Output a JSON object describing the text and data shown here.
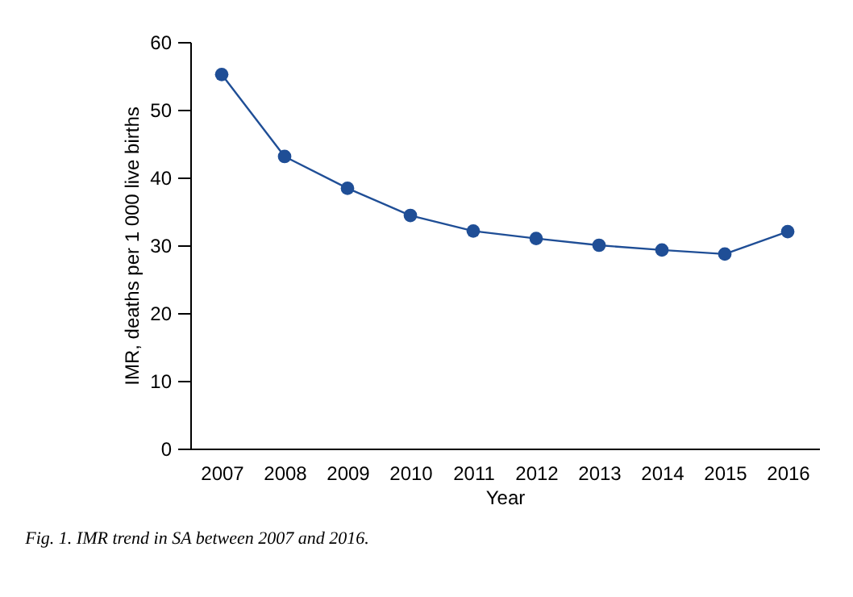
{
  "chart_data": {
    "type": "line",
    "xlabel": "Year",
    "ylabel": "IMR, deaths per 1 000 live births",
    "categories": [
      "2007",
      "2008",
      "2009",
      "2010",
      "2011",
      "2012",
      "2013",
      "2014",
      "2015",
      "2016"
    ],
    "series": [
      {
        "color": "#1f4e96",
        "values": [
          55.2,
          43.1,
          38.4,
          34.4,
          32.1,
          31.0,
          30.0,
          29.3,
          28.7,
          32.0
        ]
      }
    ],
    "ylim": [
      0,
      60
    ],
    "yticks": [
      0,
      10,
      20,
      30,
      40,
      50,
      60
    ],
    "marker": "circle",
    "grid": false,
    "annotations": [
      "Fig. 1. IMR trend in SA between 2007 and 2016."
    ]
  }
}
